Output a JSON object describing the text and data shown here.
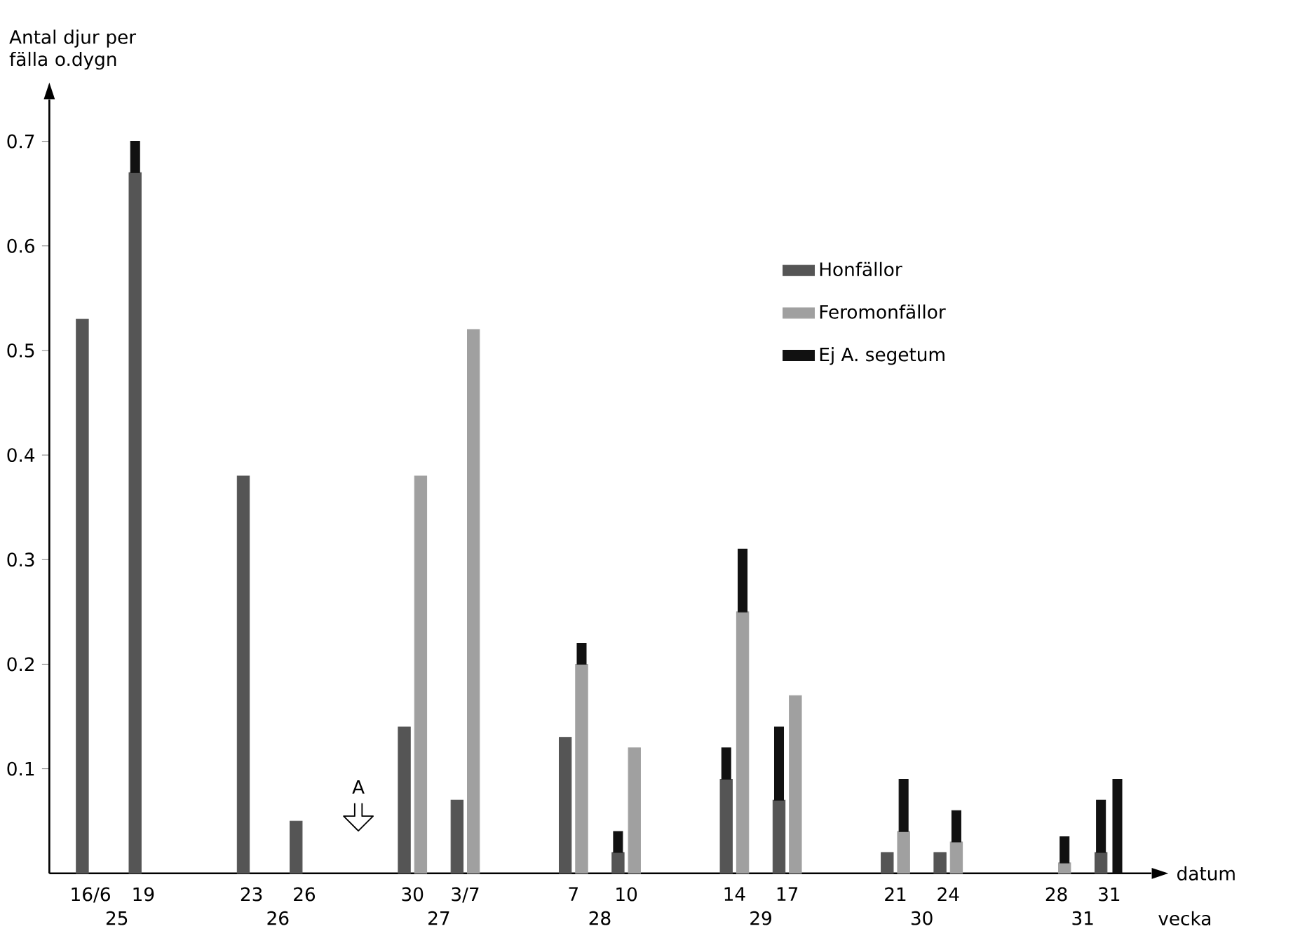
{
  "chart_data": {
    "type": "bar",
    "ylabel": "Antal djur per fälla o.dygn",
    "xlabel": "datum",
    "categories": [
      "16/6",
      "19",
      "23",
      "26",
      "30",
      "3/7",
      "7",
      "10",
      "14",
      "17",
      "21",
      "24",
      "28",
      "31"
    ],
    "series": [
      {
        "name": "Honfällor",
        "color": "#555555",
        "values": [
          0.53,
          0.67,
          0.38,
          0.05,
          0.14,
          0.07,
          0.13,
          0.02,
          0.09,
          0.07,
          0.02,
          0.02,
          null,
          0.02
        ]
      },
      {
        "name": "Ej A. segetum",
        "color": "#111111",
        "values": [
          null,
          0.03,
          null,
          null,
          null,
          null,
          null,
          0.02,
          0.03,
          0.07,
          null,
          null,
          null,
          0.05
        ],
        "base": [
          null,
          0.67,
          null,
          null,
          null,
          null,
          null,
          0.02,
          0.09,
          0.07,
          null,
          null,
          null,
          0.02
        ]
      },
      {
        "name": "Feromonfällor",
        "color": "#a0a0a0",
        "values": [
          null,
          null,
          null,
          null,
          0.38,
          0.52,
          0.2,
          0.12,
          0.25,
          0.17,
          0.04,
          0.03,
          0.01,
          null
        ],
        "base": [
          null,
          null,
          null,
          null,
          0,
          0,
          0,
          0,
          0,
          0,
          0,
          0,
          0,
          null
        ]
      },
      {
        "color": "#111111",
        "values": [
          null,
          null,
          null,
          null,
          null,
          null,
          0.02,
          null,
          0.06,
          null,
          0.05,
          0.03,
          0.025,
          0.09
        ],
        "base": [
          null,
          null,
          null,
          null,
          null,
          null,
          0.2,
          null,
          0.25,
          null,
          0.04,
          0.03,
          0.01,
          0
        ]
      }
    ],
    "ylim": [
      0,
      0.74
    ],
    "yticks": [
      0.1,
      0.2,
      0.3,
      0.4,
      0.5,
      0.6,
      0.7
    ],
    "legend": "top right",
    "annotations": [
      "A",
      "25",
      "26",
      "27",
      "28",
      "29",
      "30",
      "31",
      "vecka"
    ]
  }
}
